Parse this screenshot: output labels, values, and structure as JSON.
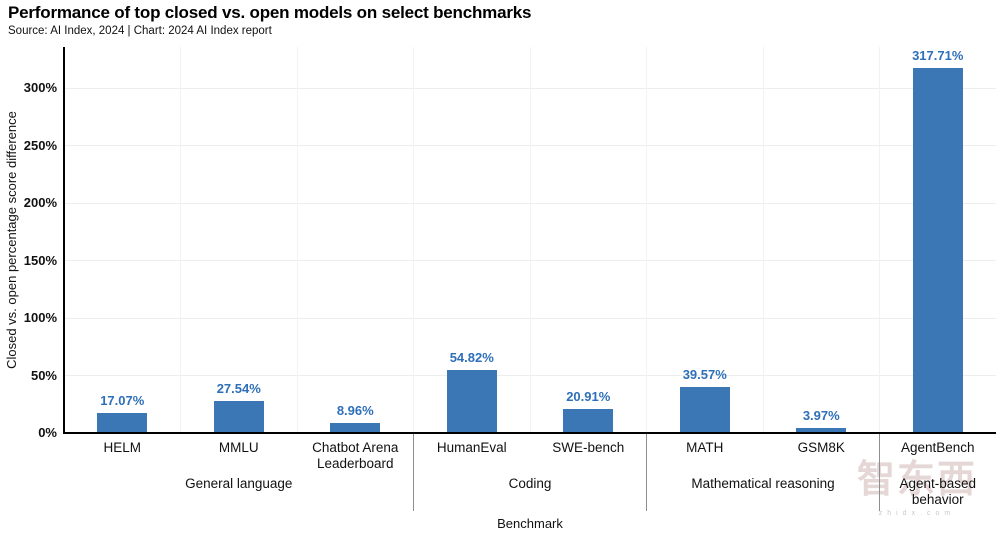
{
  "header": {
    "title": "Performance of top closed vs. open models on select benchmarks",
    "subtitle": "Source: AI Index, 2024 | Chart: 2024 AI Index report"
  },
  "chart_data": {
    "type": "bar",
    "title": "Performance of top closed vs. open models on select benchmarks",
    "xlabel": "Benchmark",
    "ylabel": "Closed vs. open percentage score difference",
    "ylim": [
      0,
      335
    ],
    "yticks": [
      0,
      50,
      100,
      150,
      200,
      250,
      300
    ],
    "ytick_suffix": "%",
    "grid": true,
    "legend": "none",
    "bar_color": "#3b76b5",
    "value_label_color": "#2e6fba",
    "groups": [
      {
        "label": "General language",
        "bars": [
          {
            "name": "HELM",
            "value": 17.07,
            "label": "17.07%"
          },
          {
            "name": "MMLU",
            "value": 27.54,
            "label": "27.54%"
          },
          {
            "name": "Chatbot Arena Leaderboard",
            "value": 8.96,
            "label": "8.96%"
          }
        ]
      },
      {
        "label": "Coding",
        "bars": [
          {
            "name": "HumanEval",
            "value": 54.82,
            "label": "54.82%"
          },
          {
            "name": "SWE-bench",
            "value": 20.91,
            "label": "20.91%"
          }
        ]
      },
      {
        "label": "Mathematical reasoning",
        "bars": [
          {
            "name": "MATH",
            "value": 39.57,
            "label": "39.57%"
          },
          {
            "name": "GSM8K",
            "value": 3.97,
            "label": "3.97%"
          }
        ]
      },
      {
        "label": "Agent-based behavior",
        "bars": [
          {
            "name": "AgentBench",
            "value": 317.71,
            "label": "317.71%"
          }
        ]
      }
    ]
  },
  "watermark": {
    "logo_text": "智东西",
    "domain": "zhidx.com"
  }
}
